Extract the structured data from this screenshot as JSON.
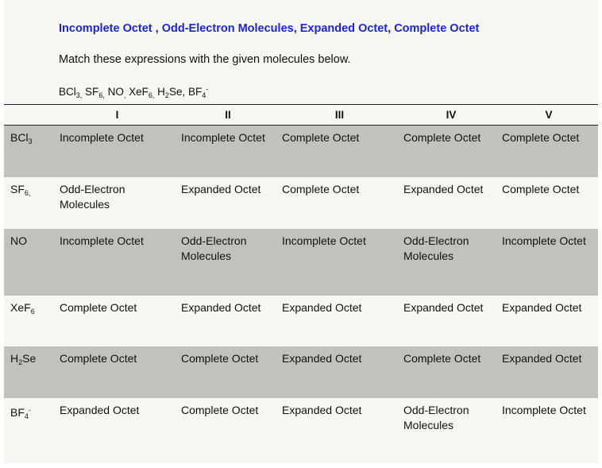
{
  "title": "Incomplete Octet , Odd-Electron Molecules, Expanded Octet, Complete Octet",
  "instruction": "Match these expressions with the given molecules below.",
  "molecule_list": [
    {
      "base": "BCl",
      "sub": "3,",
      "sep": " "
    },
    {
      "base": "SF",
      "sub": "6,",
      "sep": " "
    },
    {
      "base": "NO",
      "sub": ",",
      "sep": " "
    },
    {
      "base": "XeF",
      "sub": "6,",
      "sep": " "
    },
    {
      "base": "H",
      "sub": "2",
      "rest": "Se",
      "sep": ", "
    },
    {
      "base": "BF",
      "sub": "4",
      "sup": "-",
      "sep": ""
    }
  ],
  "table": {
    "columns": [
      "I",
      "II",
      "III",
      "IV",
      "V"
    ],
    "rows": [
      {
        "molecule": {
          "base": "BCl",
          "sub": "3"
        },
        "shaded": true,
        "height": 65,
        "cells": [
          "Incomplete Octet",
          "Incomplete Octet",
          "Complete Octet",
          "Complete Octet",
          "Complete Octet"
        ]
      },
      {
        "molecule": {
          "base": "SF",
          "sub": "6,"
        },
        "shaded": false,
        "height": 65,
        "cells": [
          "Odd-Electron Molecules",
          "Expanded Octet",
          "Complete Octet",
          "Expanded Octet",
          "Complete Octet"
        ]
      },
      {
        "molecule": {
          "base": "NO"
        },
        "shaded": true,
        "height": 84,
        "cells": [
          "Incomplete Octet",
          "Odd-Electron Molecules",
          "Incomplete Octet",
          "Odd-Electron Molecules",
          "Incomplete Octet"
        ]
      },
      {
        "molecule": {
          "base": "XeF",
          "sub": "6"
        },
        "shaded": false,
        "height": 64,
        "cells": [
          "Complete Octet",
          "Expanded Octet",
          "Expanded Octet",
          "Expanded Octet",
          "Expanded Octet"
        ]
      },
      {
        "molecule": {
          "base": "H",
          "sub": "2",
          "rest": "Se"
        },
        "shaded": true,
        "height": 65,
        "cells": [
          "Complete Octet",
          "Complete Octet",
          "Expanded Octet",
          "Complete Octet",
          "Expanded Octet"
        ]
      },
      {
        "molecule": {
          "base": "BF",
          "sub": "4",
          "sup": "-"
        },
        "shaded": false,
        "height": 83,
        "cells": [
          "Expanded Octet",
          "Complete Octet",
          "Expanded Octet",
          "Odd-Electron Molecules",
          "Incomplete Octet"
        ]
      }
    ]
  }
}
